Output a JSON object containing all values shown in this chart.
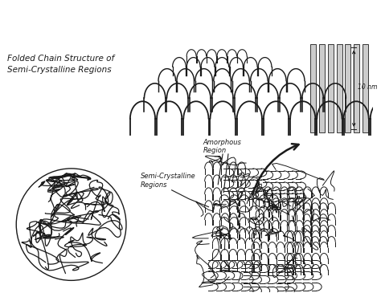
{
  "bg_color": "#ffffff",
  "line_color": "#1a1a1a",
  "title_text": "Folded Chain Structure of\nSemi-Crystalline Regions",
  "label_amorphous": "Amorphous\nRegion",
  "label_semicryst": "Semi-Crystalline\nRegions",
  "scale_label": "10 nm",
  "fig_width": 4.74,
  "fig_height": 3.65,
  "dpi": 100
}
